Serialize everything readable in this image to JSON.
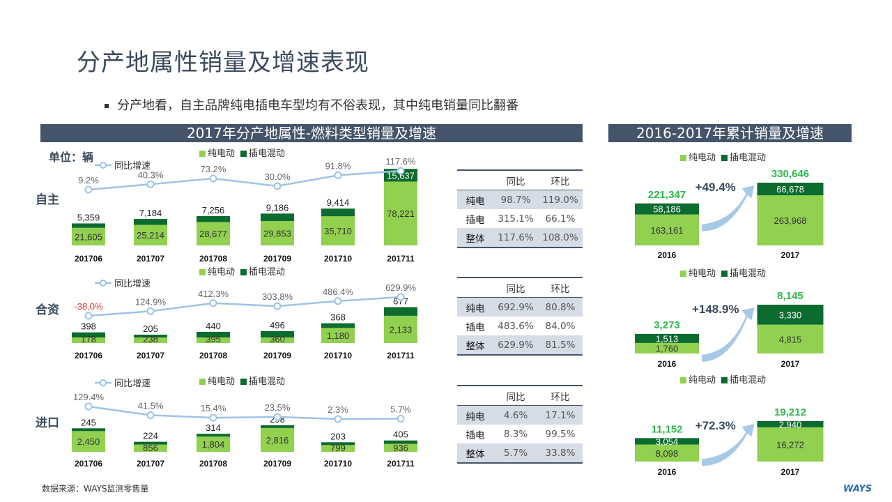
{
  "title": "分产地属性销量及增速表现",
  "bullet": "分产地看，自主品牌纯电插电车型均有不俗表现，其中纯电销量同比翻番",
  "left_header": "2017年分产地属性-燃料类型销量及增速",
  "right_header": "2016-2017年累计销量及增速",
  "unit": "单位：辆",
  "footnote": "数据来源：WAYS监测零售量",
  "logo": "WAYS",
  "legend": {
    "bev": "纯电动",
    "phev": "插电混动",
    "yoy": "同比增速"
  },
  "colors": {
    "bev": "#92d050",
    "phev": "#0c6b2e",
    "line": "#9dc3e6",
    "header": "#44546a",
    "accent_green": "#2db84b",
    "neg": "#e03030"
  },
  "tables_header": {
    "yoy": "同比",
    "mom": "环比"
  },
  "groups": [
    {
      "name": "自主",
      "table": [
        {
          "row": "纯电",
          "yoy": "98.7%",
          "mom": "119.0%"
        },
        {
          "row": "插电",
          "yoy": "315.1%",
          "mom": "66.1%"
        },
        {
          "row": "整体",
          "yoy": "117.6%",
          "mom": "108.0%"
        }
      ]
    },
    {
      "name": "合资",
      "table": [
        {
          "row": "纯电",
          "yoy": "692.9%",
          "mom": "80.8%"
        },
        {
          "row": "插电",
          "yoy": "483.6%",
          "mom": "84.0%"
        },
        {
          "row": "整体",
          "yoy": "629.9%",
          "mom": "81.5%"
        }
      ]
    },
    {
      "name": "进口",
      "table": [
        {
          "row": "纯电",
          "yoy": "4.6%",
          "mom": "17.1%"
        },
        {
          "row": "插电",
          "yoy": "8.3%",
          "mom": "99.5%"
        },
        {
          "row": "整体",
          "yoy": "5.7%",
          "mom": "33.8%"
        }
      ]
    }
  ],
  "chart_data": [
    {
      "type": "bar",
      "stacked": true,
      "group": "自主",
      "categories": [
        "201706",
        "201707",
        "201708",
        "201709",
        "201710",
        "201711"
      ],
      "series": [
        {
          "name": "纯电动",
          "values": [
            21605,
            25214,
            28677,
            29853,
            35710,
            78221
          ]
        },
        {
          "name": "插电混动",
          "values": [
            5359,
            7184,
            7256,
            9186,
            9414,
            15637
          ]
        }
      ],
      "line": {
        "name": "同比增速",
        "values": [
          9.2,
          40.3,
          73.2,
          30.0,
          91.8,
          117.6
        ],
        "labels": [
          "9.2%",
          "40.3%",
          "73.2%",
          "30.0%",
          "91.8%",
          "117.6%"
        ]
      }
    },
    {
      "type": "bar",
      "stacked": true,
      "group": "合资",
      "categories": [
        "201706",
        "201707",
        "201708",
        "201709",
        "201710",
        "201711"
      ],
      "series": [
        {
          "name": "纯电动",
          "values": [
            178,
            238,
            395,
            360,
            1180,
            2133
          ]
        },
        {
          "name": "插电混动",
          "values": [
            398,
            205,
            440,
            496,
            368,
            677
          ]
        }
      ],
      "line": {
        "name": "同比增速",
        "values": [
          -38.0,
          124.9,
          412.3,
          303.8,
          486.4,
          629.9
        ],
        "labels": [
          "-38.0%",
          "124.9%",
          "412.3%",
          "303.8%",
          "486.4%",
          "629.9%"
        ]
      }
    },
    {
      "type": "bar",
      "stacked": true,
      "group": "进口",
      "categories": [
        "201706",
        "201707",
        "201708",
        "201709",
        "201710",
        "201711"
      ],
      "series": [
        {
          "name": "纯电动",
          "values": [
            2450,
            856,
            1804,
            2816,
            799,
            936
          ]
        },
        {
          "name": "插电混动",
          "values": [
            245,
            224,
            314,
            298,
            203,
            405
          ]
        }
      ],
      "line": {
        "name": "同比增速",
        "values": [
          129.4,
          41.5,
          15.4,
          23.5,
          2.3,
          5.7
        ],
        "labels": [
          "129.4%",
          "41.5%",
          "15.4%",
          "23.5%",
          "2.3%",
          "5.7%"
        ]
      }
    },
    {
      "type": "bar",
      "stacked": true,
      "group": "自主累计",
      "categories": [
        "2016",
        "2017"
      ],
      "series": [
        {
          "name": "纯电动",
          "values": [
            163161,
            263968
          ]
        },
        {
          "name": "插电混动",
          "values": [
            58186,
            66678
          ]
        }
      ],
      "totals": [
        "221,347",
        "330,646"
      ],
      "growth": "+49.4%"
    },
    {
      "type": "bar",
      "stacked": true,
      "group": "合资累计",
      "categories": [
        "2016",
        "2017"
      ],
      "series": [
        {
          "name": "纯电动",
          "values": [
            1760,
            4815
          ]
        },
        {
          "name": "插电混动",
          "values": [
            1513,
            3330
          ]
        }
      ],
      "totals": [
        "3,273",
        "8,145"
      ],
      "growth": "+148.9%"
    },
    {
      "type": "bar",
      "stacked": true,
      "group": "进口累计",
      "categories": [
        "2016",
        "2017"
      ],
      "series": [
        {
          "name": "纯电动",
          "values": [
            8098,
            16272
          ]
        },
        {
          "name": "插电混动",
          "values": [
            3054,
            2940
          ]
        }
      ],
      "totals": [
        "11,152",
        "19,212"
      ],
      "growth": "+72.3%"
    }
  ]
}
